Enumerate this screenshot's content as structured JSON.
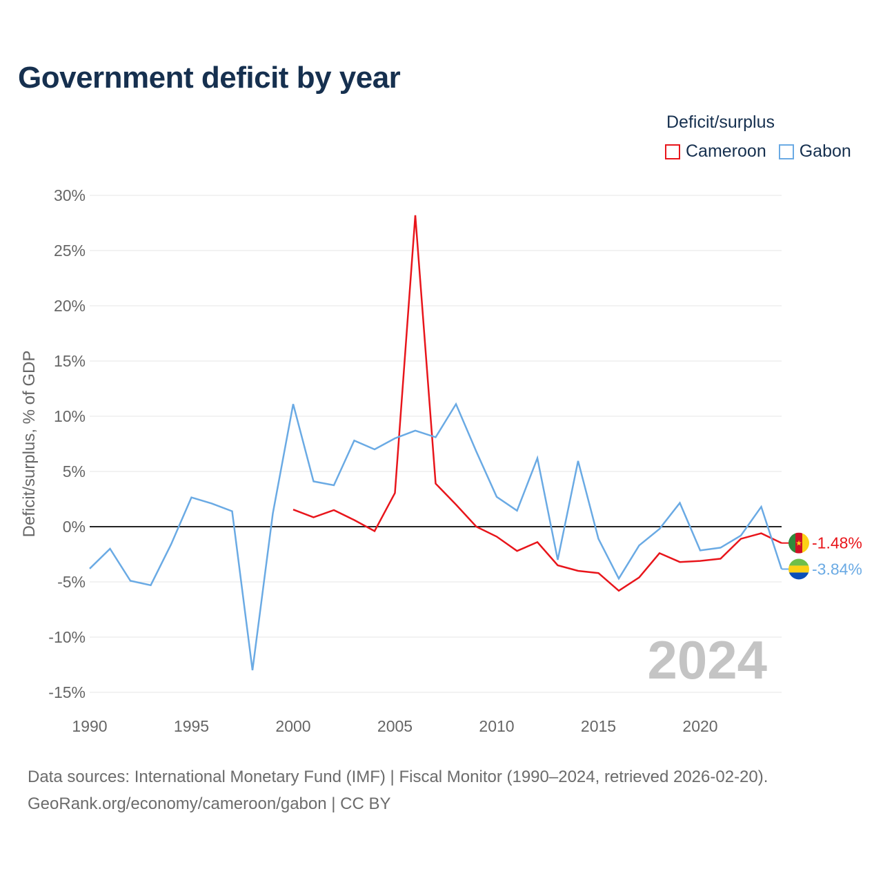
{
  "title": "Government deficit by year",
  "legend_title": "Deficit/surplus",
  "colors": {
    "cameroon": "#e8151b",
    "gabon": "#6aaae4",
    "zero_line": "#222222",
    "grid": "#e6e6e6",
    "tick_text": "#666666",
    "watermark": "#c4c4c4"
  },
  "chart_data": {
    "type": "line",
    "title": "Government deficit by year",
    "xlabel": "",
    "ylabel": "Deficit/surplus, % of GDP",
    "xlim": [
      1990,
      2024
    ],
    "ylim": [
      -15,
      30
    ],
    "grid": true,
    "legend_position": "top-right",
    "x_ticks": [
      1990,
      1995,
      2000,
      2005,
      2010,
      2015,
      2020
    ],
    "x_tick_labels": [
      "1990",
      "1995",
      "2000",
      "2005",
      "2010",
      "2015",
      "2020"
    ],
    "y_ticks": [
      30,
      25,
      20,
      15,
      10,
      5,
      0,
      -5,
      -10,
      -15
    ],
    "y_tick_labels": [
      "30%",
      "25%",
      "20%",
      "15%",
      "10%",
      "5%",
      "0%",
      "-5%",
      "-10%",
      "-15%"
    ],
    "watermark_year": "2024",
    "series": [
      {
        "name": "Cameroon",
        "color": "#e8151b",
        "end_label": "-1.48%",
        "x": [
          2000,
          2001,
          2002,
          2003,
          2004,
          2005,
          2006,
          2007,
          2008,
          2009,
          2010,
          2011,
          2012,
          2013,
          2014,
          2015,
          2016,
          2017,
          2018,
          2019,
          2020,
          2021,
          2022,
          2023,
          2024
        ],
        "values": [
          1.55,
          0.85,
          1.5,
          0.6,
          -0.4,
          3.05,
          28.2,
          3.9,
          2.0,
          0.0,
          -0.9,
          -2.2,
          -1.4,
          -3.5,
          -4.0,
          -4.2,
          -5.8,
          -4.6,
          -2.4,
          -3.2,
          -3.1,
          -2.9,
          -1.1,
          -0.6,
          -1.48
        ]
      },
      {
        "name": "Gabon",
        "color": "#6aaae4",
        "end_label": "-3.84%",
        "x": [
          1990,
          1991,
          1992,
          1993,
          1994,
          1995,
          1996,
          1997,
          1998,
          1999,
          2000,
          2001,
          2002,
          2003,
          2004,
          2005,
          2006,
          2007,
          2008,
          2009,
          2010,
          2011,
          2012,
          2013,
          2014,
          2015,
          2016,
          2017,
          2018,
          2019,
          2020,
          2021,
          2022,
          2023,
          2024
        ],
        "values": [
          -3.8,
          -2.0,
          -4.9,
          -5.3,
          -1.6,
          2.65,
          2.1,
          1.4,
          -13.0,
          1.2,
          11.1,
          4.1,
          3.75,
          7.8,
          7.0,
          8.0,
          8.7,
          8.1,
          11.1,
          6.8,
          2.7,
          1.45,
          6.2,
          -3.0,
          5.95,
          -1.1,
          -4.7,
          -1.7,
          -0.2,
          2.15,
          -2.15,
          -1.9,
          -0.8,
          1.8,
          -3.84
        ]
      }
    ]
  },
  "footer": {
    "line1": "Data sources: International Monetary Fund (IMF) | Fiscal Monitor (1990–2024, retrieved 2026-02-20).",
    "line2": "GeoRank.org/economy/cameroon/gabon | CC BY"
  }
}
